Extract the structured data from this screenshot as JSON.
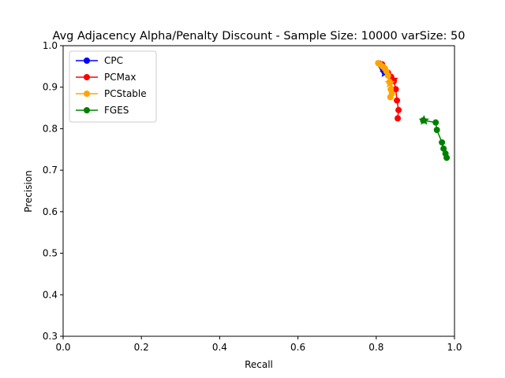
{
  "chart_data": {
    "type": "line",
    "title": "Avg Adjacency Alpha/Penalty Discount - Sample Size: 10000 varSize: 50",
    "xlabel": "Recall",
    "ylabel": "Precision",
    "xlim": [
      0.0,
      1.0
    ],
    "ylim": [
      0.3,
      1.0
    ],
    "xticks": [
      "0.0",
      "0.2",
      "0.4",
      "0.6",
      "0.8",
      "1.0"
    ],
    "yticks": [
      "0.3",
      "0.4",
      "0.5",
      "0.6",
      "0.7",
      "0.8",
      "0.9",
      "1.0"
    ],
    "grid": false,
    "legend_position": "upper-left",
    "series": [
      {
        "name": "CPC",
        "color": "#0000ff",
        "marker": "circle",
        "x": [
          0.808,
          0.812,
          0.815,
          0.818,
          0.821
        ],
        "y": [
          0.957,
          0.953,
          0.948,
          0.942,
          0.937
        ],
        "highlight": {
          "x": 0.822,
          "y": 0.935
        }
      },
      {
        "name": "PCMax",
        "color": "#ff0000",
        "marker": "circle",
        "x": [
          0.815,
          0.822,
          0.83,
          0.838,
          0.845,
          0.85,
          0.853,
          0.857,
          0.855
        ],
        "y": [
          0.955,
          0.945,
          0.935,
          0.925,
          0.915,
          0.895,
          0.868,
          0.845,
          0.825
        ],
        "highlight": {
          "x": 0.843,
          "y": 0.918
        }
      },
      {
        "name": "PCStable",
        "color": "#ffa500",
        "marker": "circle",
        "x": [
          0.805,
          0.81,
          0.816,
          0.822,
          0.826,
          0.83,
          0.834,
          0.837,
          0.84,
          0.836
        ],
        "y": [
          0.958,
          0.955,
          0.95,
          0.945,
          0.938,
          0.928,
          0.913,
          0.895,
          0.885,
          0.876
        ],
        "highlight": {
          "x": 0.835,
          "y": 0.91
        }
      },
      {
        "name": "FGES",
        "color": "#008000",
        "marker": "circle",
        "x": [
          0.92,
          0.952,
          0.955,
          0.968,
          0.972,
          0.977,
          0.98
        ],
        "y": [
          0.82,
          0.815,
          0.797,
          0.767,
          0.752,
          0.74,
          0.73
        ],
        "highlight": {
          "x": 0.922,
          "y": 0.82
        }
      }
    ]
  }
}
